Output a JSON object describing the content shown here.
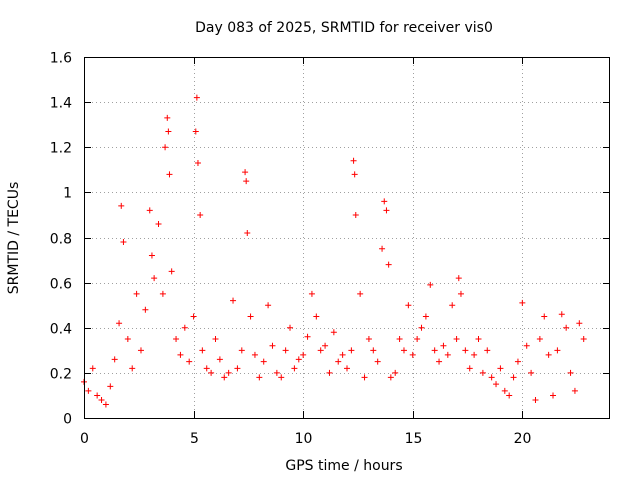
{
  "chart_data": {
    "type": "scatter",
    "title": "Day 083 of 2025, SRMTID for receiver vis0",
    "xlabel": "GPS time / hours",
    "ylabel": "SRMTID / TECUs",
    "xlim": [
      0,
      24
    ],
    "ylim": [
      0,
      1.6
    ],
    "x_ticks": [
      0,
      5,
      10,
      15,
      20
    ],
    "x_tick_labels": [
      "0",
      "5",
      "10",
      "15",
      "20"
    ],
    "y_ticks": [
      0,
      0.2,
      0.4,
      0.6,
      0.8,
      1.0,
      1.2,
      1.4,
      1.6
    ],
    "y_tick_labels": [
      "0",
      "0.2",
      "0.4",
      "0.6",
      "0.8",
      "1",
      "1.2",
      "1.4",
      "1.6"
    ],
    "grid": true,
    "marker": "plus",
    "color": "#ff0000",
    "series": [
      {
        "name": "SRMTID",
        "x": [
          0.0,
          0.2,
          0.4,
          0.6,
          0.8,
          1.0,
          1.2,
          1.4,
          1.6,
          1.7,
          1.8,
          2.0,
          2.2,
          2.4,
          2.6,
          2.8,
          3.0,
          3.1,
          3.2,
          3.4,
          3.6,
          3.7,
          3.8,
          3.85,
          3.9,
          4.0,
          4.2,
          4.4,
          4.6,
          4.8,
          5.0,
          5.1,
          5.15,
          5.2,
          5.3,
          5.4,
          5.6,
          5.8,
          6.0,
          6.2,
          6.4,
          6.6,
          6.8,
          7.0,
          7.2,
          7.35,
          7.4,
          7.45,
          7.6,
          7.8,
          8.0,
          8.2,
          8.4,
          8.6,
          8.8,
          9.0,
          9.2,
          9.4,
          9.6,
          9.8,
          10.0,
          10.2,
          10.4,
          10.6,
          10.8,
          11.0,
          11.2,
          11.4,
          11.6,
          11.8,
          12.0,
          12.2,
          12.3,
          12.35,
          12.4,
          12.6,
          12.8,
          13.0,
          13.2,
          13.4,
          13.6,
          13.7,
          13.8,
          13.9,
          14.0,
          14.2,
          14.4,
          14.6,
          14.8,
          15.0,
          15.2,
          15.4,
          15.6,
          15.8,
          16.0,
          16.2,
          16.4,
          16.6,
          16.8,
          17.0,
          17.1,
          17.2,
          17.4,
          17.6,
          17.8,
          18.0,
          18.2,
          18.4,
          18.6,
          18.8,
          19.0,
          19.2,
          19.4,
          19.6,
          19.8,
          20.0,
          20.2,
          20.4,
          20.6,
          20.8,
          21.0,
          21.2,
          21.4,
          21.6,
          21.8,
          22.0,
          22.2,
          22.4,
          22.6,
          22.8
        ],
        "y": [
          0.16,
          0.12,
          0.22,
          0.1,
          0.08,
          0.06,
          0.14,
          0.26,
          0.42,
          0.94,
          0.78,
          0.35,
          0.22,
          0.55,
          0.3,
          0.48,
          0.92,
          0.72,
          0.62,
          0.86,
          0.55,
          1.2,
          1.33,
          1.27,
          1.08,
          0.65,
          0.35,
          0.28,
          0.4,
          0.25,
          0.45,
          1.27,
          1.42,
          1.13,
          0.9,
          0.3,
          0.22,
          0.2,
          0.35,
          0.26,
          0.18,
          0.2,
          0.52,
          0.22,
          0.3,
          1.09,
          1.05,
          0.82,
          0.45,
          0.28,
          0.18,
          0.25,
          0.5,
          0.32,
          0.2,
          0.18,
          0.3,
          0.4,
          0.22,
          0.26,
          0.28,
          0.36,
          0.55,
          0.45,
          0.3,
          0.32,
          0.2,
          0.38,
          0.25,
          0.28,
          0.22,
          0.3,
          1.14,
          1.08,
          0.9,
          0.55,
          0.18,
          0.35,
          0.3,
          0.25,
          0.75,
          0.96,
          0.92,
          0.68,
          0.18,
          0.2,
          0.35,
          0.3,
          0.5,
          0.28,
          0.35,
          0.4,
          0.45,
          0.59,
          0.3,
          0.25,
          0.32,
          0.28,
          0.5,
          0.35,
          0.62,
          0.55,
          0.3,
          0.22,
          0.28,
          0.35,
          0.2,
          0.3,
          0.18,
          0.15,
          0.22,
          0.12,
          0.1,
          0.18,
          0.25,
          0.51,
          0.32,
          0.2,
          0.08,
          0.35,
          0.45,
          0.28,
          0.1,
          0.3,
          0.46,
          0.4,
          0.2,
          0.12,
          0.42,
          0.35
        ]
      }
    ]
  }
}
